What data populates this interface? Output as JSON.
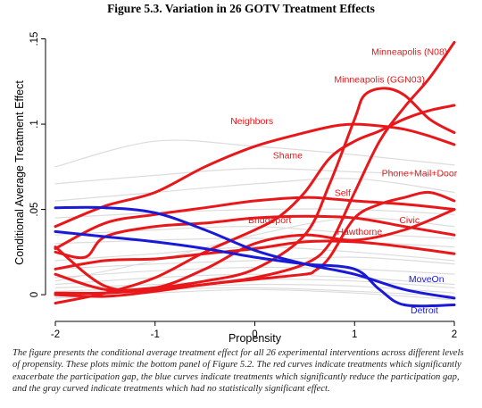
{
  "figure_title": "Figure 5.3. Variation in 26 GOTV Treatment Effects",
  "caption": "The figure presents the conditional average treatment effect for all 26 experimental interventions across different levels of propensity. These plots mimic the bottom panel of Figure 5.2. The red curves indicate treatments which significantly exacerbate the participation gap, the blue curves indicate treatments which significantly reduce the participation gap, and the gray curved indicate treatments which had no statistically significant effect.",
  "colors": {
    "significant_increase": "#e8171a",
    "significant_decrease": "#1a1ad6",
    "not_significant": "#dcdcdc"
  },
  "chart_data": {
    "type": "line",
    "xlabel": "Propensity",
    "ylabel": "Conditional Average Treatment Effect",
    "xlim": [
      -2,
      2
    ],
    "ylim": [
      -0.012,
      0.155
    ],
    "xticks": [
      -2,
      -1,
      0,
      1,
      2
    ],
    "xtick_labels": [
      "-2",
      "-1",
      "0",
      "1",
      "2"
    ],
    "yticks": [
      0,
      0.05,
      0.1,
      0.15
    ],
    "ytick_labels": [
      "0",
      ".05",
      ".1",
      ".15"
    ],
    "grid": false,
    "legend": "none",
    "series": [
      {
        "name": "Minneapolis (N08)",
        "group": "significant_increase",
        "x": [
          -2,
          -1.5,
          -1,
          -0.5,
          0,
          0.5,
          0.75,
          1,
          1.25,
          1.5,
          1.75,
          2
        ],
        "y": [
          0.001,
          0.001,
          0.003,
          0.006,
          0.01,
          0.018,
          0.03,
          0.06,
          0.09,
          0.11,
          0.127,
          0.148
        ]
      },
      {
        "name": "Minneapolis (GGN03)",
        "group": "significant_increase",
        "x": [
          -2,
          -1.5,
          -1,
          -0.5,
          0,
          0.5,
          0.75,
          1,
          1.1,
          1.3,
          1.5,
          1.75,
          2
        ],
        "y": [
          0.012,
          0.003,
          0.004,
          0.008,
          0.015,
          0.035,
          0.065,
          0.103,
          0.117,
          0.121,
          0.117,
          0.103,
          0.095
        ]
      },
      {
        "name": "Neighbors",
        "group": "significant_increase",
        "x": [
          -2,
          -1.5,
          -1,
          -0.5,
          0,
          0.5,
          0.8,
          1,
          1.25,
          1.5,
          1.75,
          2
        ],
        "y": [
          0.04,
          0.052,
          0.06,
          0.075,
          0.087,
          0.095,
          0.099,
          0.1,
          0.099,
          0.097,
          0.093,
          0.088
        ]
      },
      {
        "name": "Shame",
        "group": "significant_increase",
        "x": [
          -2,
          -1.5,
          -1,
          -0.5,
          0,
          0.25,
          0.5,
          0.75,
          1,
          1.25,
          1.5,
          1.75,
          2
        ],
        "y": [
          -0.005,
          0.001,
          0.01,
          0.025,
          0.038,
          0.046,
          0.06,
          0.08,
          0.09,
          0.096,
          0.103,
          0.108,
          0.111
        ]
      },
      {
        "name": "Self",
        "group": "significant_increase",
        "x": [
          -2,
          -1.5,
          -1,
          -0.5,
          0,
          0.5,
          0.8,
          1,
          1.5,
          2
        ],
        "y": [
          0.027,
          0.042,
          0.047,
          0.051,
          0.055,
          0.057,
          0.056,
          0.055,
          0.053,
          0.05
        ]
      },
      {
        "name": "Phone+Mail+Door",
        "group": "significant_increase",
        "x": [
          -2,
          -1.5,
          -1,
          -0.5,
          0,
          0.5,
          0.6,
          0.75,
          1,
          1.25,
          1.5,
          1.75,
          2
        ],
        "y": [
          0,
          -0.001,
          0.002,
          0.006,
          0.009,
          0.012,
          0.014,
          0.022,
          0.045,
          0.053,
          0.057,
          0.06,
          0.055
        ]
      },
      {
        "name": "Bridgeport",
        "group": "significant_increase",
        "x": [
          -2,
          -1.7,
          -1.5,
          -1,
          -0.5,
          0,
          0.5,
          1,
          1.5,
          2
        ],
        "y": [
          0.025,
          0.022,
          0.034,
          0.04,
          0.042,
          0.045,
          0.046,
          0.045,
          0.04,
          0.035
        ]
      },
      {
        "name": "Hawthorne",
        "group": "significant_increase",
        "x": [
          -2,
          -1.5,
          -1,
          -0.5,
          0,
          0.5,
          1,
          1.5,
          2
        ],
        "y": [
          0.015,
          0.02,
          0.021,
          0.024,
          0.027,
          0.031,
          0.031,
          0.028,
          0.024
        ]
      },
      {
        "name": "Civic",
        "group": "significant_increase",
        "x": [
          -2,
          -1.5,
          -1,
          -0.5,
          0,
          0.5,
          1,
          1.5,
          2
        ],
        "y": [
          0.028,
          0.005,
          0.004,
          0.015,
          0.03,
          0.035,
          0.032,
          0.038,
          0.05
        ]
      },
      {
        "name": "MoveOn",
        "group": "significant_decrease",
        "x": [
          -2,
          -1.5,
          -1,
          -0.5,
          0,
          0.5,
          1,
          1.5,
          2
        ],
        "y": [
          0.051,
          0.051,
          0.048,
          0.038,
          0.026,
          0.018,
          0.012,
          0.003,
          -0.002
        ]
      },
      {
        "name": "Detroit",
        "group": "significant_decrease",
        "x": [
          -2,
          -1.5,
          -1,
          -0.5,
          0,
          0.5,
          1,
          1.25,
          1.5,
          2
        ],
        "y": [
          0.037,
          0.034,
          0.031,
          0.027,
          0.022,
          0.018,
          0.015,
          0.003,
          -0.006,
          -0.006
        ]
      },
      {
        "group": "not_significant",
        "x": [
          -2,
          -1,
          0,
          1,
          2
        ],
        "y": [
          0.075,
          0.09,
          0.087,
          0.082,
          0.076
        ]
      },
      {
        "group": "not_significant",
        "x": [
          -2,
          -1,
          0,
          1,
          2
        ],
        "y": [
          0.065,
          0.07,
          0.074,
          0.072,
          0.07
        ]
      },
      {
        "group": "not_significant",
        "x": [
          -2,
          -1,
          0,
          1,
          2
        ],
        "y": [
          0.055,
          0.06,
          0.065,
          0.068,
          0.06
        ]
      },
      {
        "group": "not_significant",
        "x": [
          -2,
          -1,
          0,
          1,
          2
        ],
        "y": [
          0.045,
          0.048,
          0.05,
          0.05,
          0.047
        ]
      },
      {
        "group": "not_significant",
        "x": [
          -2,
          -1,
          0,
          1,
          2
        ],
        "y": [
          0.035,
          0.038,
          0.04,
          0.036,
          0.033
        ]
      },
      {
        "group": "not_significant",
        "x": [
          -2,
          -1,
          0,
          1,
          2
        ],
        "y": [
          0.03,
          0.032,
          0.033,
          0.031,
          0.028
        ]
      },
      {
        "group": "not_significant",
        "x": [
          -2,
          -1,
          0,
          1,
          2
        ],
        "y": [
          0.02,
          0.024,
          0.028,
          0.025,
          0.02
        ]
      },
      {
        "group": "not_significant",
        "x": [
          -2,
          -1,
          0,
          1,
          2
        ],
        "y": [
          0.015,
          0.018,
          0.02,
          0.022,
          0.018
        ]
      },
      {
        "group": "not_significant",
        "x": [
          -2,
          -1,
          0,
          1,
          2
        ],
        "y": [
          0.01,
          0.014,
          0.016,
          0.015,
          0.012
        ]
      },
      {
        "group": "not_significant",
        "x": [
          -2,
          -1,
          0,
          1,
          2
        ],
        "y": [
          0.006,
          0.01,
          0.012,
          0.01,
          0.006
        ]
      },
      {
        "group": "not_significant",
        "x": [
          -2,
          -1,
          0,
          1,
          2
        ],
        "y": [
          0.004,
          0.006,
          0.009,
          0.008,
          0.004
        ]
      },
      {
        "group": "not_significant",
        "x": [
          -2,
          -1,
          0,
          1,
          2
        ],
        "y": [
          0.002,
          0.004,
          0.006,
          0.005,
          0.001
        ]
      },
      {
        "group": "not_significant",
        "x": [
          -2,
          -1,
          0,
          1,
          2
        ],
        "y": [
          0,
          0.003,
          0.004,
          0.002,
          -0.001
        ]
      },
      {
        "group": "not_significant",
        "x": [
          -2,
          -1,
          0,
          1,
          2
        ],
        "y": [
          -0.002,
          0.001,
          0.003,
          0.001,
          -0.003
        ]
      },
      {
        "group": "not_significant",
        "x": [
          -2,
          -1,
          0,
          1,
          2
        ],
        "y": [
          0.008,
          0.02,
          0.035,
          0.045,
          0.04
        ]
      }
    ],
    "annotations": [
      {
        "text": "Minneapolis (N08)",
        "x": 1.55,
        "y": 0.1405,
        "color": "#e8171a"
      },
      {
        "text": "Minneapolis (GGN03)",
        "x": 1.25,
        "y": 0.1245,
        "color": "#e8171a"
      },
      {
        "text": "Neighbors",
        "x": -0.03,
        "y": 0.1,
        "color": "#e8171a"
      },
      {
        "text": "Shame",
        "x": 0.33,
        "y": 0.08,
        "color": "#e8171a"
      },
      {
        "text": "Self",
        "x": 0.88,
        "y": 0.058,
        "color": "#e8171a"
      },
      {
        "text": "Phone+Mail+Door",
        "x": 1.65,
        "y": 0.0695,
        "color": "#e8171a"
      },
      {
        "text": "Bridgeport",
        "x": 0.15,
        "y": 0.042,
        "color": "#e8171a"
      },
      {
        "text": "Hawthorne",
        "x": 1.05,
        "y": 0.035,
        "color": "#e8171a"
      },
      {
        "text": "Civic",
        "x": 1.55,
        "y": 0.042,
        "color": "#e8171a"
      },
      {
        "text": "MoveOn",
        "x": 1.72,
        "y": 0.0075,
        "color": "#1a1ad6"
      },
      {
        "text": "Detroit",
        "x": 1.7,
        "y": -0.011,
        "color": "#1a1ad6"
      }
    ]
  }
}
